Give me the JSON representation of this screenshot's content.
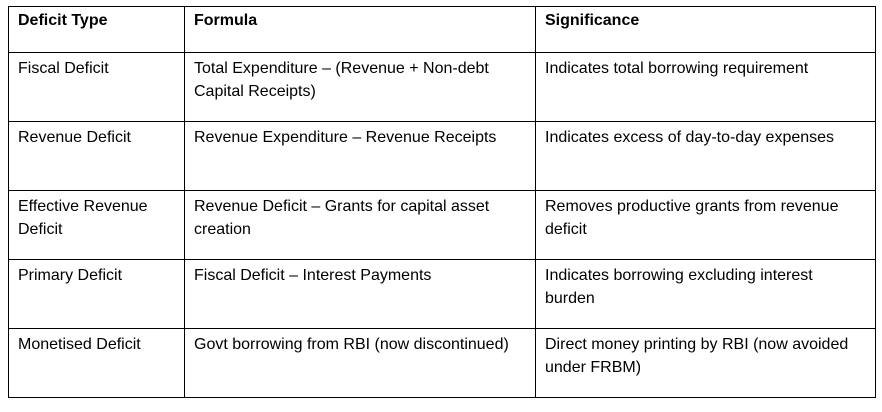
{
  "table": {
    "headers": [
      "Deficit Type",
      "Formula",
      "Significance"
    ],
    "rows": [
      [
        "Fiscal Deficit",
        "Total Expenditure – (Revenue + Non-debt Capital Receipts)",
        "Indicates total borrowing requirement"
      ],
      [
        "Revenue Deficit",
        "Revenue Expenditure – Revenue Receipts",
        "Indicates excess of day-to-day expenses"
      ],
      [
        "Effective Revenue Deficit",
        "Revenue Deficit – Grants for capital asset creation",
        "Removes productive grants from revenue deficit"
      ],
      [
        "Primary Deficit",
        "Fiscal Deficit – Interest Payments",
        "Indicates borrowing excluding interest burden"
      ],
      [
        "Monetised Deficit",
        "Govt borrowing from RBI (now discontinued)",
        "Direct money printing by RBI (now avoided under FRBM)"
      ]
    ]
  }
}
